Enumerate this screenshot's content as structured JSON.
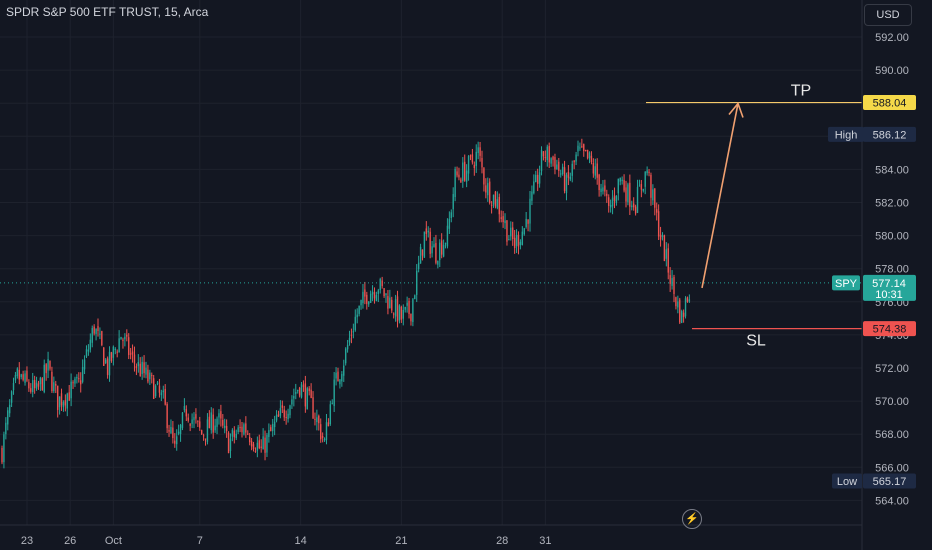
{
  "header": {
    "symbol_title": "SPDR S&P 500 ETF TRUST, 15, Arca",
    "currency": "USD"
  },
  "icons": {
    "replay": "lightning-icon"
  },
  "colors": {
    "background": "#131722",
    "up": "#26a69a",
    "down": "#ef5350",
    "tp_line": "#f5c96a",
    "sl_line": "#ef5350",
    "arrow": "#f0a070",
    "price_line": "#26a69a"
  },
  "chart_data": {
    "type": "candlestick",
    "ylim": [
      563,
      593
    ],
    "y_ticks": [
      "592.00",
      "590.00",
      "588.00",
      "586.00",
      "584.00",
      "582.00",
      "580.00",
      "578.00",
      "576.00",
      "574.00",
      "572.00",
      "570.00",
      "568.00",
      "566.00",
      "564.00"
    ],
    "x_ticks": [
      {
        "label": "23",
        "day": 0
      },
      {
        "label": "26",
        "day": 3
      },
      {
        "label": "Oct",
        "day": 6
      },
      {
        "label": "7",
        "day": 12
      },
      {
        "label": "14",
        "day": 19
      },
      {
        "label": "21",
        "day": 26
      },
      {
        "label": "28",
        "day": 33
      },
      {
        "label": "31",
        "day": 36
      }
    ],
    "path_keypoints": [
      [
        0,
        567.0
      ],
      [
        3,
        569.0
      ],
      [
        8,
        571.5
      ],
      [
        18,
        570.5
      ],
      [
        24,
        572.0
      ],
      [
        29,
        570.0
      ],
      [
        40,
        571.0
      ],
      [
        48,
        574.5
      ],
      [
        55,
        572.0
      ],
      [
        62,
        574.0
      ],
      [
        68,
        572.5
      ],
      [
        75,
        571.5
      ],
      [
        84,
        570.0
      ],
      [
        90,
        567.0
      ],
      [
        96,
        569.5
      ],
      [
        104,
        568.0
      ],
      [
        112,
        569.0
      ],
      [
        118,
        567.5
      ],
      [
        126,
        568.5
      ],
      [
        135,
        567.0
      ],
      [
        142,
        568.5
      ],
      [
        150,
        570.0
      ],
      [
        155,
        571.0
      ],
      [
        162,
        569.5
      ],
      [
        168,
        567.5
      ],
      [
        172,
        570.5
      ],
      [
        178,
        572.5
      ],
      [
        184,
        575.0
      ],
      [
        190,
        576.5
      ],
      [
        196,
        577.0
      ],
      [
        202,
        576.0
      ],
      [
        208,
        575.0
      ],
      [
        213,
        575.5
      ],
      [
        216,
        577.5
      ],
      [
        220,
        580.0
      ],
      [
        226,
        579.0
      ],
      [
        232,
        580.0
      ],
      [
        236,
        583.5
      ],
      [
        242,
        584.0
      ],
      [
        248,
        585.0
      ],
      [
        252,
        583.0
      ],
      [
        258,
        582.0
      ],
      [
        264,
        580.0
      ],
      [
        267,
        579.5
      ],
      [
        272,
        580.5
      ],
      [
        278,
        583.0
      ],
      [
        282,
        585.0
      ],
      [
        288,
        584.5
      ],
      [
        294,
        583.0
      ],
      [
        300,
        585.0
      ],
      [
        306,
        584.5
      ],
      [
        312,
        583.0
      ],
      [
        316,
        581.5
      ],
      [
        322,
        583.5
      ],
      [
        326,
        582.5
      ],
      [
        330,
        582.0
      ],
      [
        336,
        584.0
      ],
      [
        340,
        581.5
      ],
      [
        346,
        578.5
      ],
      [
        350,
        576.5
      ],
      [
        354,
        575.0
      ],
      [
        358,
        576.8
      ]
    ],
    "annotations": {
      "tp": {
        "label": "TP",
        "price": 588.04,
        "price_label": "588.04"
      },
      "sl": {
        "label": "SL",
        "price": 574.38,
        "price_label": "574.38"
      },
      "high": {
        "label": "High",
        "value": "586.12",
        "price": 586.12
      },
      "low": {
        "label": "Low",
        "value": "565.17",
        "price": 565.17
      },
      "last": {
        "label": "SPY",
        "value": "577.14",
        "countdown": "10:31",
        "price": 577.14
      }
    }
  }
}
